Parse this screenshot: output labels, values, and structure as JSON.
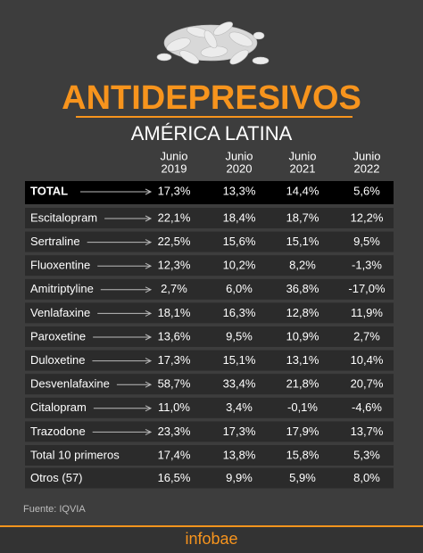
{
  "header": {
    "title": "ANTIDEPRESIVOS",
    "subtitle": "AMÉRICA LATINA"
  },
  "table": {
    "columns": [
      {
        "month": "Junio",
        "year": "2019"
      },
      {
        "month": "Junio",
        "year": "2020"
      },
      {
        "month": "Junio",
        "year": "2021"
      },
      {
        "month": "Junio",
        "year": "2022"
      }
    ],
    "total": [
      "TOTAL",
      "17,3%",
      "13,3%",
      "14,4%",
      "5,6%"
    ],
    "rows": [
      [
        "Escitalopram",
        "22,1%",
        "18,4%",
        "18,7%",
        "12,2%"
      ],
      [
        "Sertraline",
        "22,5%",
        "15,6%",
        "15,1%",
        "9,5%"
      ],
      [
        "Fluoxentine",
        "12,3%",
        "10,2%",
        "8,2%",
        "-1,3%"
      ],
      [
        "Amitriptyline",
        "2,7%",
        "6,0%",
        "36,8%",
        "-17,0%"
      ],
      [
        "Venlafaxine",
        "18,1%",
        "16,3%",
        "12,8%",
        "11,9%"
      ],
      [
        "Paroxetine",
        "13,6%",
        "9,5%",
        "10,9%",
        "2,7%"
      ],
      [
        "Duloxetine",
        "17,3%",
        "15,1%",
        "13,1%",
        "10,4%"
      ],
      [
        "Desvenlafaxine",
        "58,7%",
        "33,4%",
        "21,8%",
        "20,7%"
      ],
      [
        "Citalopram",
        "11,0%",
        "3,4%",
        "-0,1%",
        "-4,6%"
      ],
      [
        "Trazodone",
        "23,3%",
        "17,3%",
        "17,9%",
        "13,7%"
      ]
    ],
    "summary_rows": [
      [
        "Total 10 primeros",
        "17,4%",
        "13,8%",
        "15,8%",
        "5,3%"
      ],
      [
        "Otros (57)",
        "16,5%",
        "9,9%",
        "5,9%",
        "8,0%"
      ]
    ]
  },
  "footer": {
    "source": "Fuente: IQVIA",
    "brand": "infobae"
  }
}
